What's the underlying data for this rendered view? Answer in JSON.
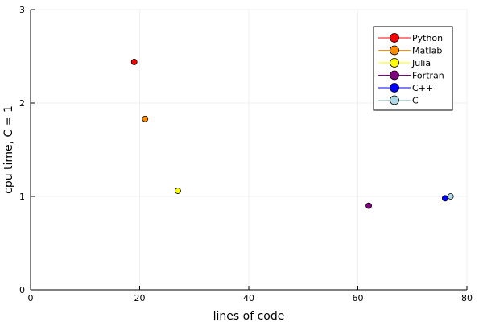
{
  "chart_data": {
    "type": "scatter",
    "title": "",
    "xlabel": "lines of code",
    "ylabel": "cpu time, C = 1",
    "xlim": [
      0,
      80
    ],
    "ylim": [
      0,
      3
    ],
    "xticks": [
      0,
      20,
      40,
      60,
      80
    ],
    "yticks": [
      0,
      1,
      2,
      3
    ],
    "grid": true,
    "legend_position": "top-right",
    "series": [
      {
        "name": "Python",
        "color": "#ff0000",
        "x": 19,
        "y": 2.44
      },
      {
        "name": "Matlab",
        "color": "#ff8c00",
        "x": 21,
        "y": 1.83
      },
      {
        "name": "Julia",
        "color": "#ffff00",
        "x": 27,
        "y": 1.06
      },
      {
        "name": "Fortran",
        "color": "#800080",
        "x": 62,
        "y": 0.9
      },
      {
        "name": "C++",
        "color": "#0000ff",
        "x": 76,
        "y": 0.98
      },
      {
        "name": "C",
        "color": "#add8e6",
        "x": 77,
        "y": 1.0
      }
    ]
  }
}
